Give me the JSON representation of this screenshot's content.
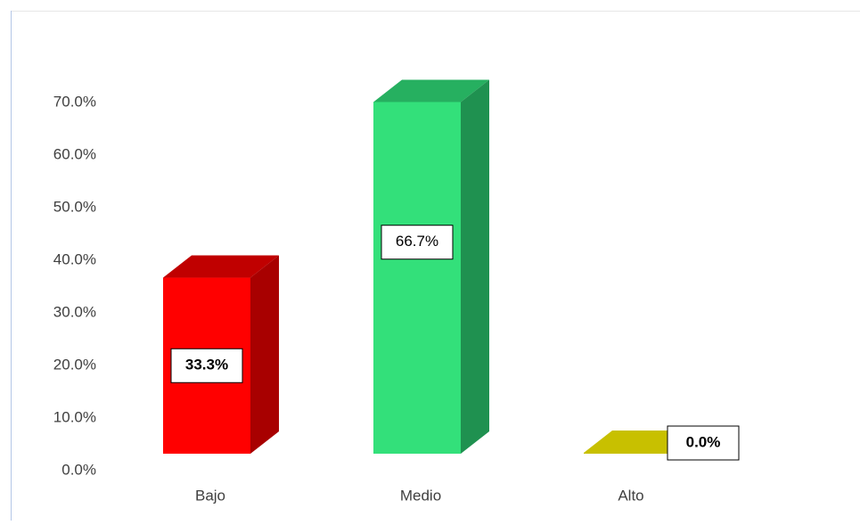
{
  "chart_data": {
    "type": "bar3d",
    "categories": [
      "Bajo",
      "Medio",
      "Alto"
    ],
    "values": [
      33.3,
      66.7,
      0.0
    ],
    "value_labels": [
      "33.3%",
      "66.7%",
      "0.0%"
    ],
    "colors": [
      "#ff0000",
      "#33e07a",
      "#c8c000"
    ],
    "side_colors": [
      "#a80000",
      "#1f9150",
      "#a8a000"
    ],
    "top_colors": [
      "#c00000",
      "#26b060",
      "#c8c000"
    ],
    "ylim": [
      0,
      70
    ],
    "yticks": [
      {
        "value": 0,
        "label": "0.0%"
      },
      {
        "value": 10,
        "label": "10.0%"
      },
      {
        "value": 20,
        "label": "20.0%"
      },
      {
        "value": 30,
        "label": "30.0%"
      },
      {
        "value": 40,
        "label": "40.0%"
      },
      {
        "value": 50,
        "label": "50.0%"
      },
      {
        "value": 60,
        "label": "60.0%"
      },
      {
        "value": 70,
        "label": "70.0%"
      }
    ],
    "grid": false
  }
}
